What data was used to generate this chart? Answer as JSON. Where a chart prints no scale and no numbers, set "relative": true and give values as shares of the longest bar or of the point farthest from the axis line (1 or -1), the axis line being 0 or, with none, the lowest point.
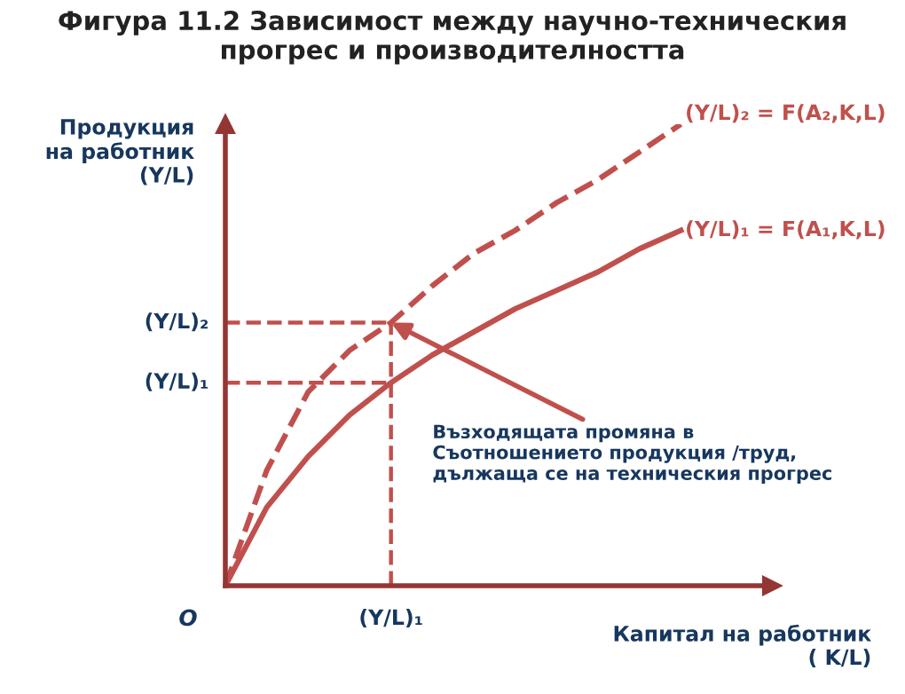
{
  "chart_data": {
    "type": "line",
    "relative": true,
    "title": "Фигура 11.2 Зависимост между научно-техническия прогрес и производителността",
    "ylabel": "Продукция\nна работник\n(Y/L)",
    "xlabel": "Капитал на работник\n( K/L)",
    "categories": [
      null,
      null,
      null,
      null,
      null,
      null,
      null,
      null,
      null,
      null,
      null,
      null
    ],
    "series": [
      {
        "name": "(Y/L)₂ = F(A₂,K,L)",
        "color": "#c0504d",
        "line_style": "dashed",
        "values": [
          0,
          0.25,
          0.42,
          0.51,
          0.57,
          0.65,
          0.72,
          0.77,
          0.83,
          0.88,
          0.94,
          1
        ]
      },
      {
        "name": "(Y/L)₁ = F(A₁,K,L)",
        "color": "#c0504d",
        "line_style": "solid",
        "values": [
          0,
          0.17,
          0.28,
          0.37,
          0.44,
          0.5,
          0.55,
          0.6,
          0.64,
          0.68,
          0.73,
          0.77
        ]
      }
    ],
    "ref_lines": [
      {
        "axis": "y",
        "value": 0.57,
        "label": "(Y/L)₂",
        "color": "#c0504d",
        "line_style": "dashed"
      },
      {
        "axis": "y",
        "value": 0.44,
        "label": "(Y/L)₁",
        "color": "#c0504d",
        "line_style": "dashed"
      }
    ],
    "annotations": [
      "Възходящата промяна в\nСъотношението продукция /труд,\nдължаща се на техническия прогрес",
      "O",
      "(Y/L)₁"
    ]
  }
}
